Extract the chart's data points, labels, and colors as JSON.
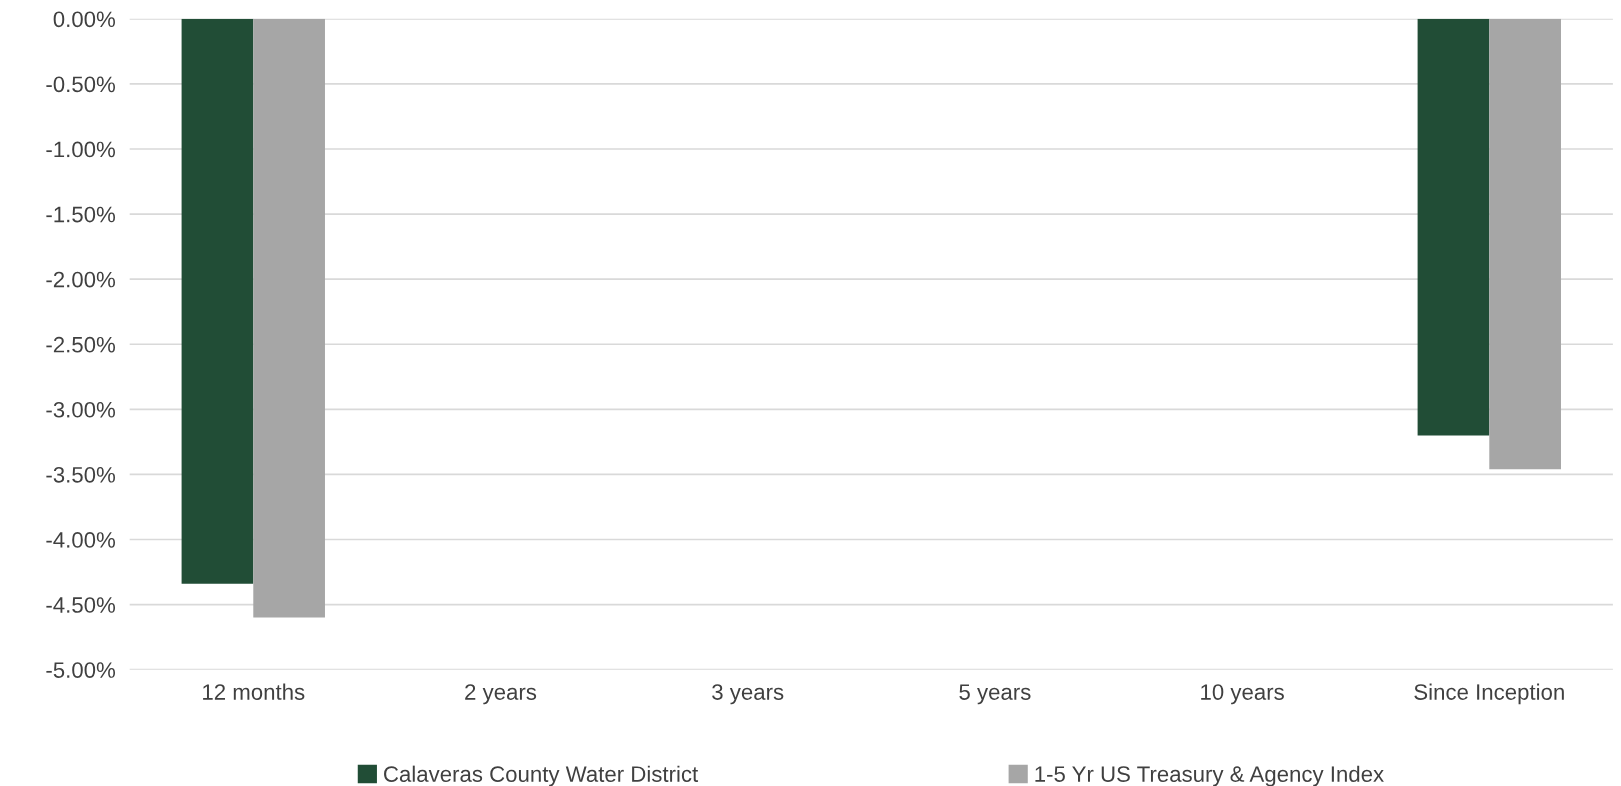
{
  "chart_data": {
    "type": "bar",
    "categories": [
      "12 months",
      "2 years",
      "3 years",
      "5 years",
      "10 years",
      "Since Inception"
    ],
    "series": [
      {
        "name": "Calaveras County Water District",
        "color": "#214d36",
        "values": [
          -4.34,
          null,
          null,
          null,
          null,
          -3.2
        ]
      },
      {
        "name": "1-5 Yr US Treasury & Agency Index",
        "color": "#a6a6a6",
        "values": [
          -4.6,
          null,
          null,
          null,
          null,
          -3.46
        ]
      }
    ],
    "ylim": [
      -5,
      0
    ],
    "yticks": [
      {
        "value": 0,
        "label": "0.00%"
      },
      {
        "value": -0.5,
        "label": "-0.50%"
      },
      {
        "value": -1,
        "label": "-1.00%"
      },
      {
        "value": -1.5,
        "label": "-1.50%"
      },
      {
        "value": -2,
        "label": "-2.00%"
      },
      {
        "value": -2.5,
        "label": "-2.50%"
      },
      {
        "value": -3,
        "label": "-3.00%"
      },
      {
        "value": -3.5,
        "label": "-3.50%"
      },
      {
        "value": -4,
        "label": "-4.00%"
      },
      {
        "value": -4.5,
        "label": "-4.50%"
      },
      {
        "value": -5,
        "label": "-5.00%"
      }
    ],
    "grid": "y",
    "legend": "bottom"
  }
}
